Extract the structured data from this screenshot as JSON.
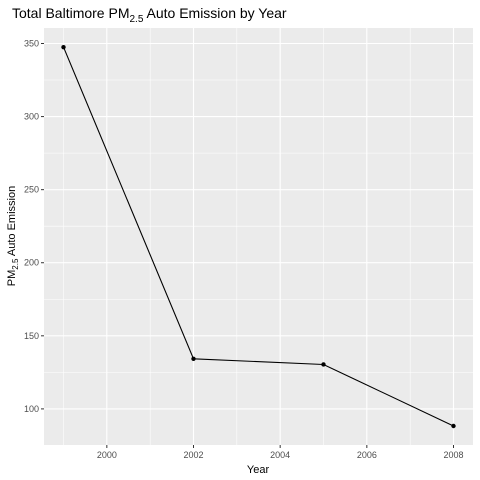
{
  "chart_data": {
    "type": "line",
    "title": {
      "prefix": "Total Baltimore PM",
      "subscript": "2.5",
      "suffix": " Auto Emission by Year"
    },
    "xlabel": "Year",
    "ylabel": {
      "prefix": "PM",
      "subscript": "2.5",
      "suffix": " Auto Emission"
    },
    "x": [
      1999,
      2002,
      2005,
      2008
    ],
    "y": [
      347.5,
      134.3,
      130.4,
      88.3
    ],
    "xlim": [
      1998.55,
      2008.45
    ],
    "ylim": [
      75.3,
      360.6
    ],
    "x_ticks": [
      2000,
      2002,
      2004,
      2006,
      2008
    ],
    "x_tick_labels": [
      "2000",
      "2002",
      "2004",
      "2006",
      "2008"
    ],
    "y_ticks": [
      100,
      150,
      200,
      250,
      300,
      350
    ],
    "y_tick_labels": [
      "100",
      "150",
      "200",
      "250",
      "300",
      "350"
    ],
    "grid": true,
    "colors": {
      "panel": "#ebebeb",
      "grid": "#ffffff",
      "line": "#000000",
      "tick_text": "#4d4d4d"
    }
  }
}
